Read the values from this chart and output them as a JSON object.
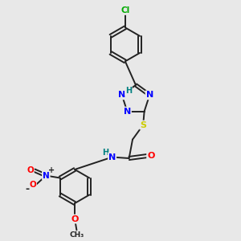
{
  "background_color": "#e8e8e8",
  "atom_colors": {
    "C": "#000000",
    "N": "#0000ff",
    "O": "#ff0000",
    "S": "#cccc00",
    "Cl": "#00aa00",
    "H": "#008080"
  },
  "figsize": [
    3.0,
    3.0
  ],
  "dpi": 100
}
